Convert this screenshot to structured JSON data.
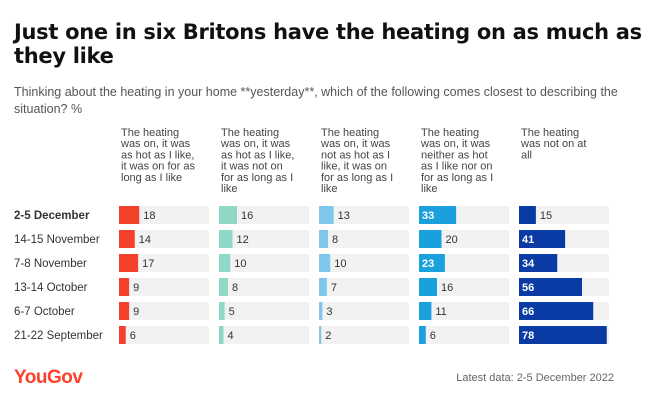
{
  "header": {
    "title": "Just one in six Britons have the heating on as much as they like",
    "subtitle": "Thinking about the heating in your home **yesterday**, which of the following comes closest to describing the situation? %"
  },
  "footer": {
    "logo": "YouGov",
    "note": "Latest data: 2-5 December 2022"
  },
  "chart_data": {
    "type": "bar",
    "categories": [
      "2-5 December",
      "14-15 November",
      "7-8 November",
      "13-14 October",
      "6-7 October",
      "21-22 September"
    ],
    "highlight_category": "2-5 December",
    "xlim": [
      0,
      80
    ],
    "series": [
      {
        "name": "The heating was on, it was as hot as I like, it was on for as long as I like",
        "name_lines": [
          "The heating",
          "was on, it was",
          "as hot as I like,",
          "it was on for as",
          "long as I like"
        ],
        "color": "#f4412c",
        "values": [
          18,
          14,
          17,
          9,
          9,
          6
        ]
      },
      {
        "name": "The heating was on, it was as hot as I like, it was not on for as long as I like",
        "name_lines": [
          "The heating",
          "was on, it was",
          "as hot as I like,",
          "it was not on",
          "for as long as I",
          "like"
        ],
        "color": "#8ed8c5",
        "values": [
          16,
          12,
          10,
          8,
          5,
          4
        ]
      },
      {
        "name": "The heating was on, it was not as hot as I like, it was on for as long as I like",
        "name_lines": [
          "The heating",
          "was on, it was",
          "not as hot as I",
          "like, it was on",
          "for as long as I",
          "like"
        ],
        "color": "#7ec6ec",
        "values": [
          13,
          8,
          10,
          7,
          3,
          2
        ]
      },
      {
        "name": "The heating was on, it was neither as hot as I like nor on for as long as I like",
        "name_lines": [
          "The heating",
          "was on, it was",
          "neither as hot",
          "as I like nor on",
          "for as long as I",
          "like"
        ],
        "color": "#1aa0dc",
        "values": [
          33,
          20,
          23,
          16,
          11,
          6
        ]
      },
      {
        "name": "The heating was not on at all",
        "name_lines": [
          "The heating",
          "was not on at",
          "all"
        ],
        "color": "#0a3aa3",
        "values": [
          15,
          41,
          34,
          56,
          66,
          78
        ]
      }
    ]
  }
}
